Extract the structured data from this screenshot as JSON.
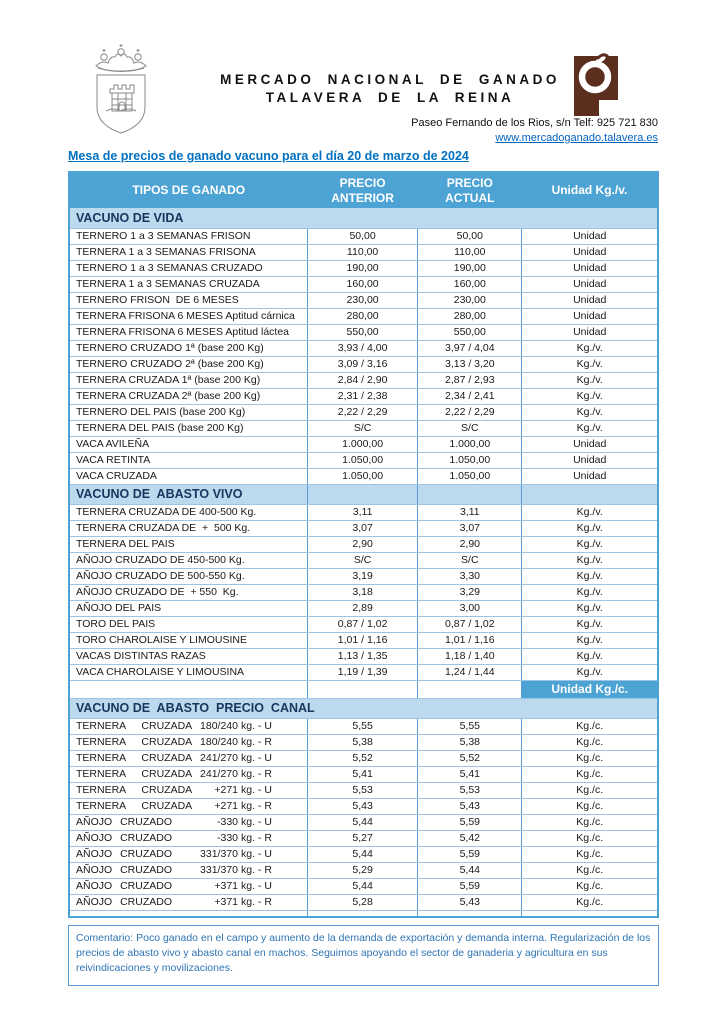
{
  "header": {
    "org_line1": "MERCADO NACIONAL DE GANADO",
    "org_line2": "TALAVERA DE LA REINA",
    "address": "Paseo Fernando de los Rios, s/n  Telf: 925 721 830",
    "website": "www.mercadoganado.talavera.es",
    "crest_icon": "talavera-coat-of-arms",
    "brand_icon": "mercado-ganado-logo"
  },
  "title": "Mesa de precios de ganado vacuno para el día 20 de marzo de 2024",
  "colors": {
    "header_blue": "#4da3d4",
    "section_blue": "#bdd9ee",
    "section_text": "#17365d",
    "title_blue": "#0070c0",
    "link_blue": "#0563c1",
    "comment_blue": "#2e74b5",
    "logo_brown": "#5c2e1d"
  },
  "table": {
    "columns": [
      "TIPOS DE GANADO",
      "PRECIO ANTERIOR",
      "PRECIO ACTUAL",
      "Unidad Kg./v."
    ],
    "second_unit_header": "Unidad Kg./c.",
    "sections": [
      {
        "title": "VACUNO DE VIDA",
        "merged": true,
        "rows": [
          {
            "label": "TERNERO 1 a 3 SEMANAS FRISON",
            "prev": "50,00",
            "curr": "50,00",
            "unit": "Unidad"
          },
          {
            "label": "TERNERA 1 a 3 SEMANAS FRISONA",
            "prev": "110,00",
            "curr": "110,00",
            "unit": "Unidad"
          },
          {
            "label": "TERNERO 1 a 3 SEMANAS CRUZADO",
            "prev": "190,00",
            "curr": "190,00",
            "unit": "Unidad"
          },
          {
            "label": "TERNERA 1 a 3 SEMANAS CRUZADA",
            "prev": "160,00",
            "curr": "160,00",
            "unit": "Unidad"
          },
          {
            "label": "TERNERO FRISON  DE 6 MESES",
            "prev": "230,00",
            "curr": "230,00",
            "unit": "Unidad"
          },
          {
            "label": "TERNERA FRISONA 6 MESES Aptitud cárnica",
            "prev": "280,00",
            "curr": "280,00",
            "unit": "Unidad"
          },
          {
            "label": "TERNERA FRISONA 6 MESES Aptitud láctea",
            "prev": "550,00",
            "curr": "550,00",
            "unit": "Unidad"
          },
          {
            "label": "TERNERO CRUZADO 1ª (base 200 Kg)",
            "prev": "3,93 / 4,00",
            "curr": "3,97 / 4,04",
            "unit": "Kg./v."
          },
          {
            "label": "TERNERO CRUZADO 2ª (base 200 Kg)",
            "prev": "3,09 / 3,16",
            "curr": "3,13 / 3,20",
            "unit": "Kg./v."
          },
          {
            "label": "TERNERA CRUZADA 1ª (base 200 Kg)",
            "prev": "2,84 / 2,90",
            "curr": "2,87 / 2,93",
            "unit": "Kg./v."
          },
          {
            "label": "TERNERA CRUZADA 2ª (base 200 Kg)",
            "prev": "2,31 / 2,38",
            "curr": "2,34 / 2,41",
            "unit": "Kg./v."
          },
          {
            "label": "TERNERO DEL PAIS (base 200 Kg)",
            "prev": "2,22 / 2,29",
            "curr": "2,22 / 2,29",
            "unit": "Kg./v."
          },
          {
            "label": "TERNERA DEL PAIS (base 200 Kg)",
            "prev": "S/C",
            "curr": "S/C",
            "unit": "Kg./v."
          },
          {
            "label": "VACA AVILEÑA",
            "prev": "1.000,00",
            "curr": "1.000,00",
            "unit": "Unidad"
          },
          {
            "label": "VACA RETINTA",
            "prev": "1.050,00",
            "curr": "1.050,00",
            "unit": "Unidad"
          },
          {
            "label": "VACA CRUZADA",
            "prev": "1.050,00",
            "curr": "1.050,00",
            "unit": "Unidad"
          }
        ]
      },
      {
        "title": "VACUNO DE  ABASTO VIVO",
        "merged": false,
        "rows": [
          {
            "label": "TERNERA CRUZADA DE 400-500 Kg.",
            "prev": "3,11",
            "curr": "3,11",
            "unit": "Kg./v."
          },
          {
            "label": "TERNERA CRUZADA DE  +  500 Kg.",
            "prev": "3,07",
            "curr": "3,07",
            "unit": "Kg./v."
          },
          {
            "label": "TERNERA DEL PAIS",
            "prev": "2,90",
            "curr": "2,90",
            "unit": "Kg./v."
          },
          {
            "label": "AÑOJO CRUZADO DE 450-500 Kg.",
            "prev": "S/C",
            "curr": "S/C",
            "unit": "Kg./v."
          },
          {
            "label": "AÑOJO CRUZADO DE 500-550 Kg.",
            "prev": "3,19",
            "curr": "3,30",
            "unit": "Kg./v."
          },
          {
            "label": "AÑOJO CRUZADO DE  + 550  Kg.",
            "prev": "3,18",
            "curr": "3,29",
            "unit": "Kg./v."
          },
          {
            "label": "AÑOJO DEL PAIS",
            "prev": "2,89",
            "curr": "3,00",
            "unit": "Kg./v."
          },
          {
            "label": "TORO DEL PAIS",
            "prev": "0,87 / 1,02",
            "curr": "0,87 / 1,02",
            "unit": "Kg./v."
          },
          {
            "label": "TORO CHAROLAISE Y LIMOUSINE",
            "prev": "1,01 / 1,16",
            "curr": "1,01 / 1,16",
            "unit": "Kg./v."
          },
          {
            "label": "VACAS DISTINTAS RAZAS",
            "prev": "1,13 / 1,35",
            "curr": "1,18 / 1,40",
            "unit": "Kg./v."
          },
          {
            "label": "VACA CHAROLAISE Y LIMOUSINA",
            "prev": "1,19 / 1,39",
            "curr": "1,24 / 1,44",
            "unit": "Kg./v."
          }
        ]
      },
      {
        "title": "VACUNO DE  ABASTO  PRECIO  CANAL",
        "merged": true,
        "unit_row_before": true,
        "rows": [
          {
            "animal": "TERNERA  CRUZADA",
            "weight": "180/240",
            "grade": "kg. - U",
            "prev": "5,55",
            "curr": "5,55",
            "unit": "Kg./c."
          },
          {
            "animal": "TERNERA  CRUZADA",
            "weight": "180/240",
            "grade": "kg. - R",
            "prev": "5,38",
            "curr": "5,38",
            "unit": "Kg./c."
          },
          {
            "animal": "TERNERA  CRUZADA",
            "weight": "241/270",
            "grade": "kg. - U",
            "prev": "5,52",
            "curr": "5,52",
            "unit": "Kg./c."
          },
          {
            "animal": "TERNERA  CRUZADA",
            "weight": "241/270",
            "grade": "kg. - R",
            "prev": "5,41",
            "curr": "5,41",
            "unit": "Kg./c."
          },
          {
            "animal": "TERNERA  CRUZADA",
            "weight": "+271",
            "grade": "kg. - U",
            "prev": "5,53",
            "curr": "5,53",
            "unit": "Kg./c."
          },
          {
            "animal": "TERNERA  CRUZADA",
            "weight": "+271",
            "grade": "kg. - R",
            "prev": "5,43",
            "curr": "5,43",
            "unit": "Kg./c."
          },
          {
            "animal": "AÑOJO CRUZADO",
            "weight": "-330",
            "grade": "kg. - U",
            "prev": "5,44",
            "curr": "5,59",
            "unit": "Kg./c."
          },
          {
            "animal": "AÑOJO CRUZADO",
            "weight": "-330",
            "grade": "kg. - R",
            "prev": "5,27",
            "curr": "5,42",
            "unit": "Kg./c."
          },
          {
            "animal": "AÑOJO CRUZADO",
            "weight": "331/370",
            "grade": "kg. - U",
            "prev": "5,44",
            "curr": "5,59",
            "unit": "Kg./c."
          },
          {
            "animal": "AÑOJO CRUZADO",
            "weight": "331/370",
            "grade": "kg. - R",
            "prev": "5,29",
            "curr": "5,44",
            "unit": "Kg./c."
          },
          {
            "animal": "AÑOJO CRUZADO",
            "weight": "+371",
            "grade": "kg. - U",
            "prev": "5,44",
            "curr": "5,59",
            "unit": "Kg./c."
          },
          {
            "animal": "AÑOJO CRUZADO",
            "weight": "+371",
            "grade": "kg. - R",
            "prev": "5,28",
            "curr": "5,43",
            "unit": "Kg./c."
          }
        ]
      }
    ]
  },
  "comment": "Comentario: Poco ganado en el campo y aumento de la demanda de exportación y demanda interna. Regularización de los precios de abasto vivo y abasto canal en machos. Seguimos apoyando el sector de ganaderia y agricultura en sus reivindicaciones y movilizaciones."
}
